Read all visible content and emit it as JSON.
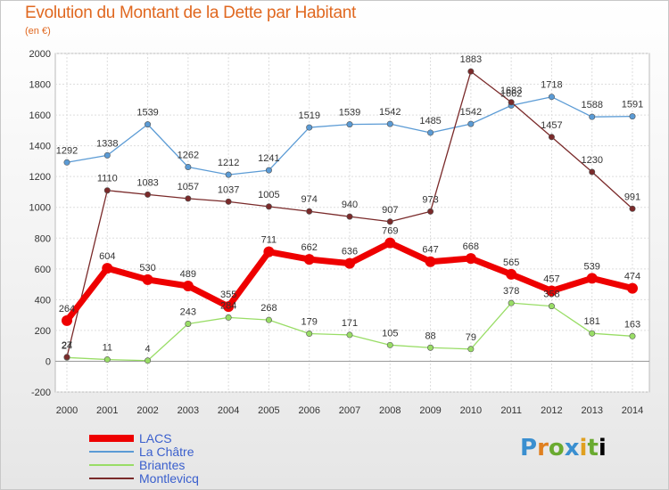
{
  "header": {
    "title": "Evolution du Montant de la Dette par Habitant",
    "subtitle": "(en €)"
  },
  "logo": {
    "text": "Proxiti"
  },
  "chart_data": {
    "type": "line",
    "title": "Evolution du Montant de la Dette par Habitant",
    "subtitle": "(en €)",
    "x": [
      "2000",
      "2001",
      "2002",
      "2003",
      "2004",
      "2005",
      "2006",
      "2007",
      "2008",
      "2009",
      "2010",
      "2011",
      "2012",
      "2013",
      "2014"
    ],
    "ylim": [
      -200,
      2000
    ],
    "yticks": [
      "-200",
      "0",
      "200",
      "400",
      "600",
      "800",
      "1000",
      "1200",
      "1400",
      "1600",
      "1800",
      "2000"
    ],
    "grid": true,
    "legend_position": "bottom-left",
    "series": [
      {
        "name": "LACS",
        "color": "#ee0000",
        "values": [
          264,
          604,
          530,
          489,
          355,
          711,
          662,
          636,
          769,
          647,
          668,
          565,
          457,
          539,
          474
        ],
        "labels": [
          "264",
          "604",
          "530",
          "489",
          "355",
          "711",
          "662",
          "636",
          "769",
          "647",
          "668",
          "565",
          "457",
          "539",
          "474"
        ]
      },
      {
        "name": "La Châtre",
        "color": "#5b9bd5",
        "values": [
          1292,
          1338,
          1539,
          1262,
          1212,
          1241,
          1519,
          1539,
          1542,
          1485,
          1542,
          1662,
          1718,
          1588,
          1591
        ],
        "labels": [
          "1292",
          "1338",
          "1539",
          "1262",
          "1212",
          "1241",
          "1519",
          "1539",
          "1542",
          "1485",
          "1542",
          "1662",
          "1718",
          "1588",
          "1591"
        ]
      },
      {
        "name": "Briantes",
        "color": "#99dd66",
        "values": [
          24,
          11,
          4,
          243,
          284,
          268,
          179,
          171,
          105,
          88,
          79,
          378,
          358,
          181,
          163
        ],
        "labels": [
          "24",
          "11",
          "4",
          "243",
          "284",
          "268",
          "179",
          "171",
          "105",
          "88",
          "79",
          "378",
          "358",
          "181",
          "163"
        ]
      },
      {
        "name": "Montlevicq",
        "color": "#7a2a2a",
        "values": [
          27,
          1110,
          1083,
          1057,
          1037,
          1005,
          974,
          940,
          907,
          973,
          1883,
          1683,
          1457,
          1230,
          991
        ],
        "labels": [
          "27",
          "1110",
          "1083",
          "1057",
          "1037",
          "1005",
          "974",
          "940",
          "907",
          "973",
          "1883",
          "1683",
          "1457",
          "1230",
          "991"
        ]
      }
    ]
  }
}
